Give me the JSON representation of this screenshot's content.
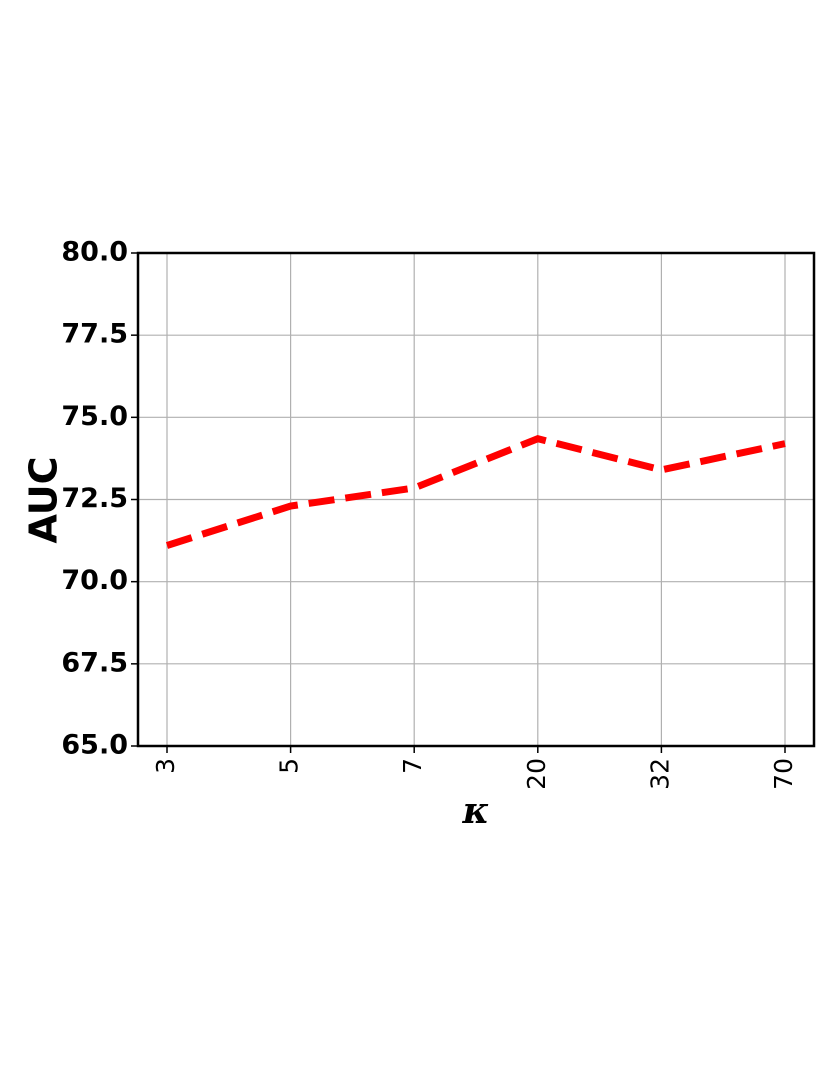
{
  "chart_data": {
    "type": "line",
    "x_label": "κ",
    "y_label": "AUC",
    "categories": [
      "3",
      "5",
      "7",
      "20",
      "32",
      "70"
    ],
    "series": [
      {
        "color": "#ff0000",
        "values": [
          71.1,
          72.3,
          72.85,
          74.35,
          73.4,
          74.2
        ]
      }
    ],
    "ylim": [
      65,
      80
    ],
    "yticks": [
      {
        "value": 65,
        "label": "65.0"
      },
      67.5,
      {
        "value": 70,
        "label": "70.0"
      },
      72.5,
      {
        "value": 75,
        "label": "75.0"
      },
      77.5,
      {
        "value": 80,
        "label": "80.0"
      }
    ],
    "grid": true,
    "line_style": "dashed"
  }
}
